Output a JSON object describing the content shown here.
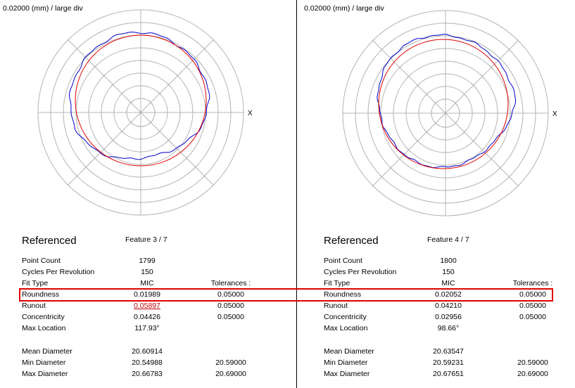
{
  "panels": [
    {
      "scale": "0.02000 (mm) / large div",
      "axis_label": "X",
      "title": "Referenced",
      "feature": "Feature 3 / 7",
      "tolerances_header": "Tolerances :",
      "rows": [
        {
          "label": "Point Count",
          "value": "1799",
          "tol": ""
        },
        {
          "label": "Cycles Per Revolution",
          "value": "150",
          "tol": ""
        },
        {
          "label": "Fit Type",
          "value": "MIC",
          "tol": ""
        },
        {
          "label": "Roundness",
          "value": "0.01989",
          "tol": "0.05000"
        },
        {
          "label": "Runout",
          "value": "0.05897",
          "tol": "0.05000",
          "out_of_tolerance": true
        },
        {
          "label": "Concentricity",
          "value": "0.04426",
          "tol": "0.05000"
        },
        {
          "label": "Max Location",
          "value": "117.93°",
          "tol": ""
        },
        {
          "label": "Mean Diameter",
          "value": "20.60914",
          "tol": ""
        },
        {
          "label": "Min Diameter",
          "value": "20.54988",
          "tol": "20.59000"
        },
        {
          "label": "Max Diameter",
          "value": "20.66783",
          "tol": "20.69000"
        }
      ]
    },
    {
      "scale": "0.02000 (mm) / large div",
      "axis_label": "X",
      "title": "Referenced",
      "feature": "Feature 4 / 7",
      "tolerances_header": "Tolerances :",
      "rows": [
        {
          "label": "Point Count",
          "value": "1800",
          "tol": ""
        },
        {
          "label": "Cycles Per Revolution",
          "value": "150",
          "tol": ""
        },
        {
          "label": "Fit Type",
          "value": "MIC",
          "tol": ""
        },
        {
          "label": "Roundness",
          "value": "0.02052",
          "tol": "0.05000"
        },
        {
          "label": "Runout",
          "value": "0.04210",
          "tol": "0.05000"
        },
        {
          "label": "Concentricity",
          "value": "0.02956",
          "tol": "0.05000"
        },
        {
          "label": "Max Location",
          "value": "98.66°",
          "tol": ""
        },
        {
          "label": "Mean Diameter",
          "value": "20.63547",
          "tol": ""
        },
        {
          "label": "Min Diameter",
          "value": "20.59231",
          "tol": "20.59000"
        },
        {
          "label": "Max Diameter",
          "value": "20.67651",
          "tol": "20.69000"
        }
      ]
    }
  ],
  "colors": {
    "profile": "#0000cc",
    "fit_circle": "#e00000",
    "grid": "#b4b4b4",
    "highlight": "#e00000",
    "out_of_tolerance": "#c00000"
  }
}
